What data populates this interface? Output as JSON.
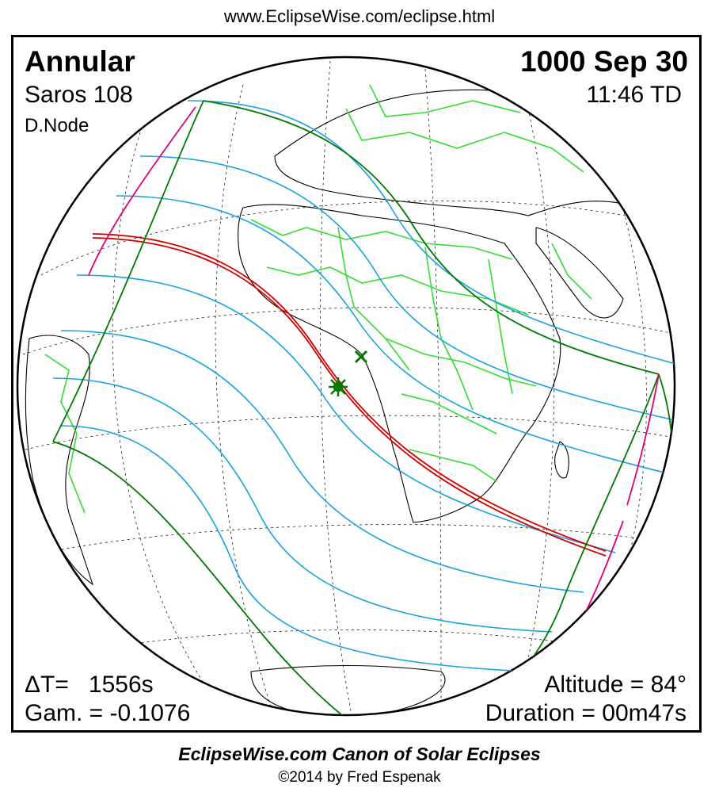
{
  "header": {
    "url": "www.EclipseWise.com/eclipse.html"
  },
  "eclipse": {
    "type": "Annular",
    "saros": "Saros 108",
    "node": "D.Node",
    "date": "1000 Sep 30",
    "time": "11:46 TD",
    "delta_t": "ΔT=   1556s",
    "gamma": "Gam. = -0.1076",
    "altitude": "Altitude = 84°",
    "duration": "Duration = 00m47s"
  },
  "footer": {
    "title": "EclipseWise.com Canon of Solar Eclipses",
    "copyright": "©2014 by Fred Espenak"
  },
  "colors": {
    "border_lines": "#007a00",
    "central_path": "#d40000",
    "magnitude_lines": "#1aa3e0",
    "rise_set_lines": "#e0007a",
    "political_borders": "#33dd33",
    "coastlines": "#000000",
    "graticule": "#000000"
  },
  "markers": {
    "greatest_eclipse": "star-marker",
    "subsolar_point": "cross-marker"
  }
}
